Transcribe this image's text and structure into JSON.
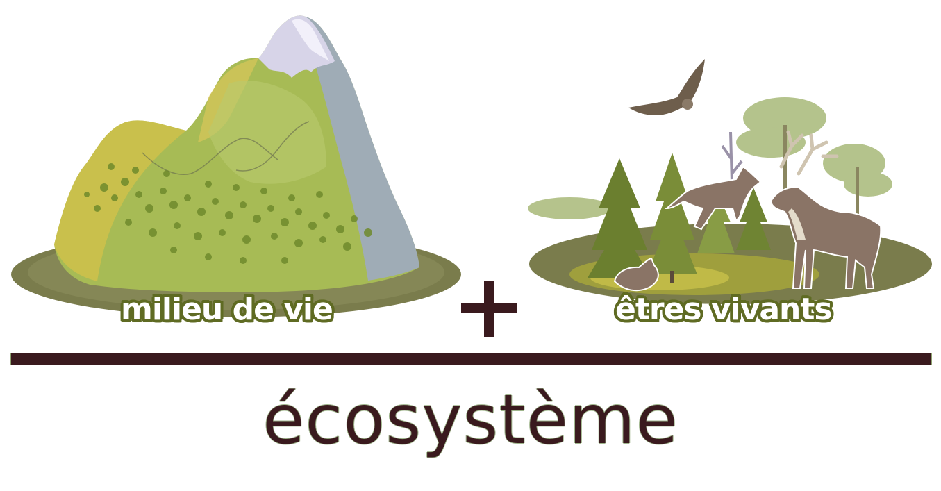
{
  "diagram": {
    "left_label": "milieu de vie",
    "right_label": "êtres vivants",
    "operator": "+",
    "result": "écosystème"
  },
  "colors": {
    "dark_maroon": "#3a1a1e",
    "label_outline": "#5f6b23",
    "ground": "#7a7c4c",
    "mountain_green": "#9bb24a",
    "snow": "#c9c7e0",
    "tree_green": "#6b7f2f",
    "animal_brown": "#8a7466"
  }
}
